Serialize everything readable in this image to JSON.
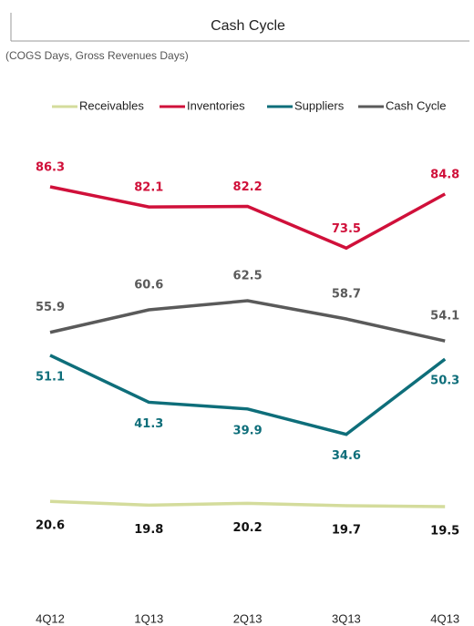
{
  "chart_data": {
    "type": "line",
    "title": "Cash Cycle",
    "subtitle": "(COGS Days, Gross Revenues Days)",
    "categories": [
      "4Q12",
      "1Q13",
      "2Q13",
      "3Q13",
      "4Q13"
    ],
    "series": [
      {
        "name": "Receivables",
        "color": "#d4dc9c",
        "values": [
          20.6,
          19.8,
          20.2,
          19.7,
          19.5
        ]
      },
      {
        "name": "Inventories",
        "color": "#d0103a",
        "values": [
          86.3,
          82.1,
          82.2,
          73.5,
          84.8
        ]
      },
      {
        "name": "Suppliers",
        "color": "#0e6e7a",
        "values": [
          51.1,
          41.3,
          39.9,
          34.6,
          50.3
        ]
      },
      {
        "name": "Cash Cycle",
        "color": "#5a5a5a",
        "values": [
          55.9,
          60.6,
          62.5,
          58.7,
          54.1
        ]
      }
    ]
  }
}
